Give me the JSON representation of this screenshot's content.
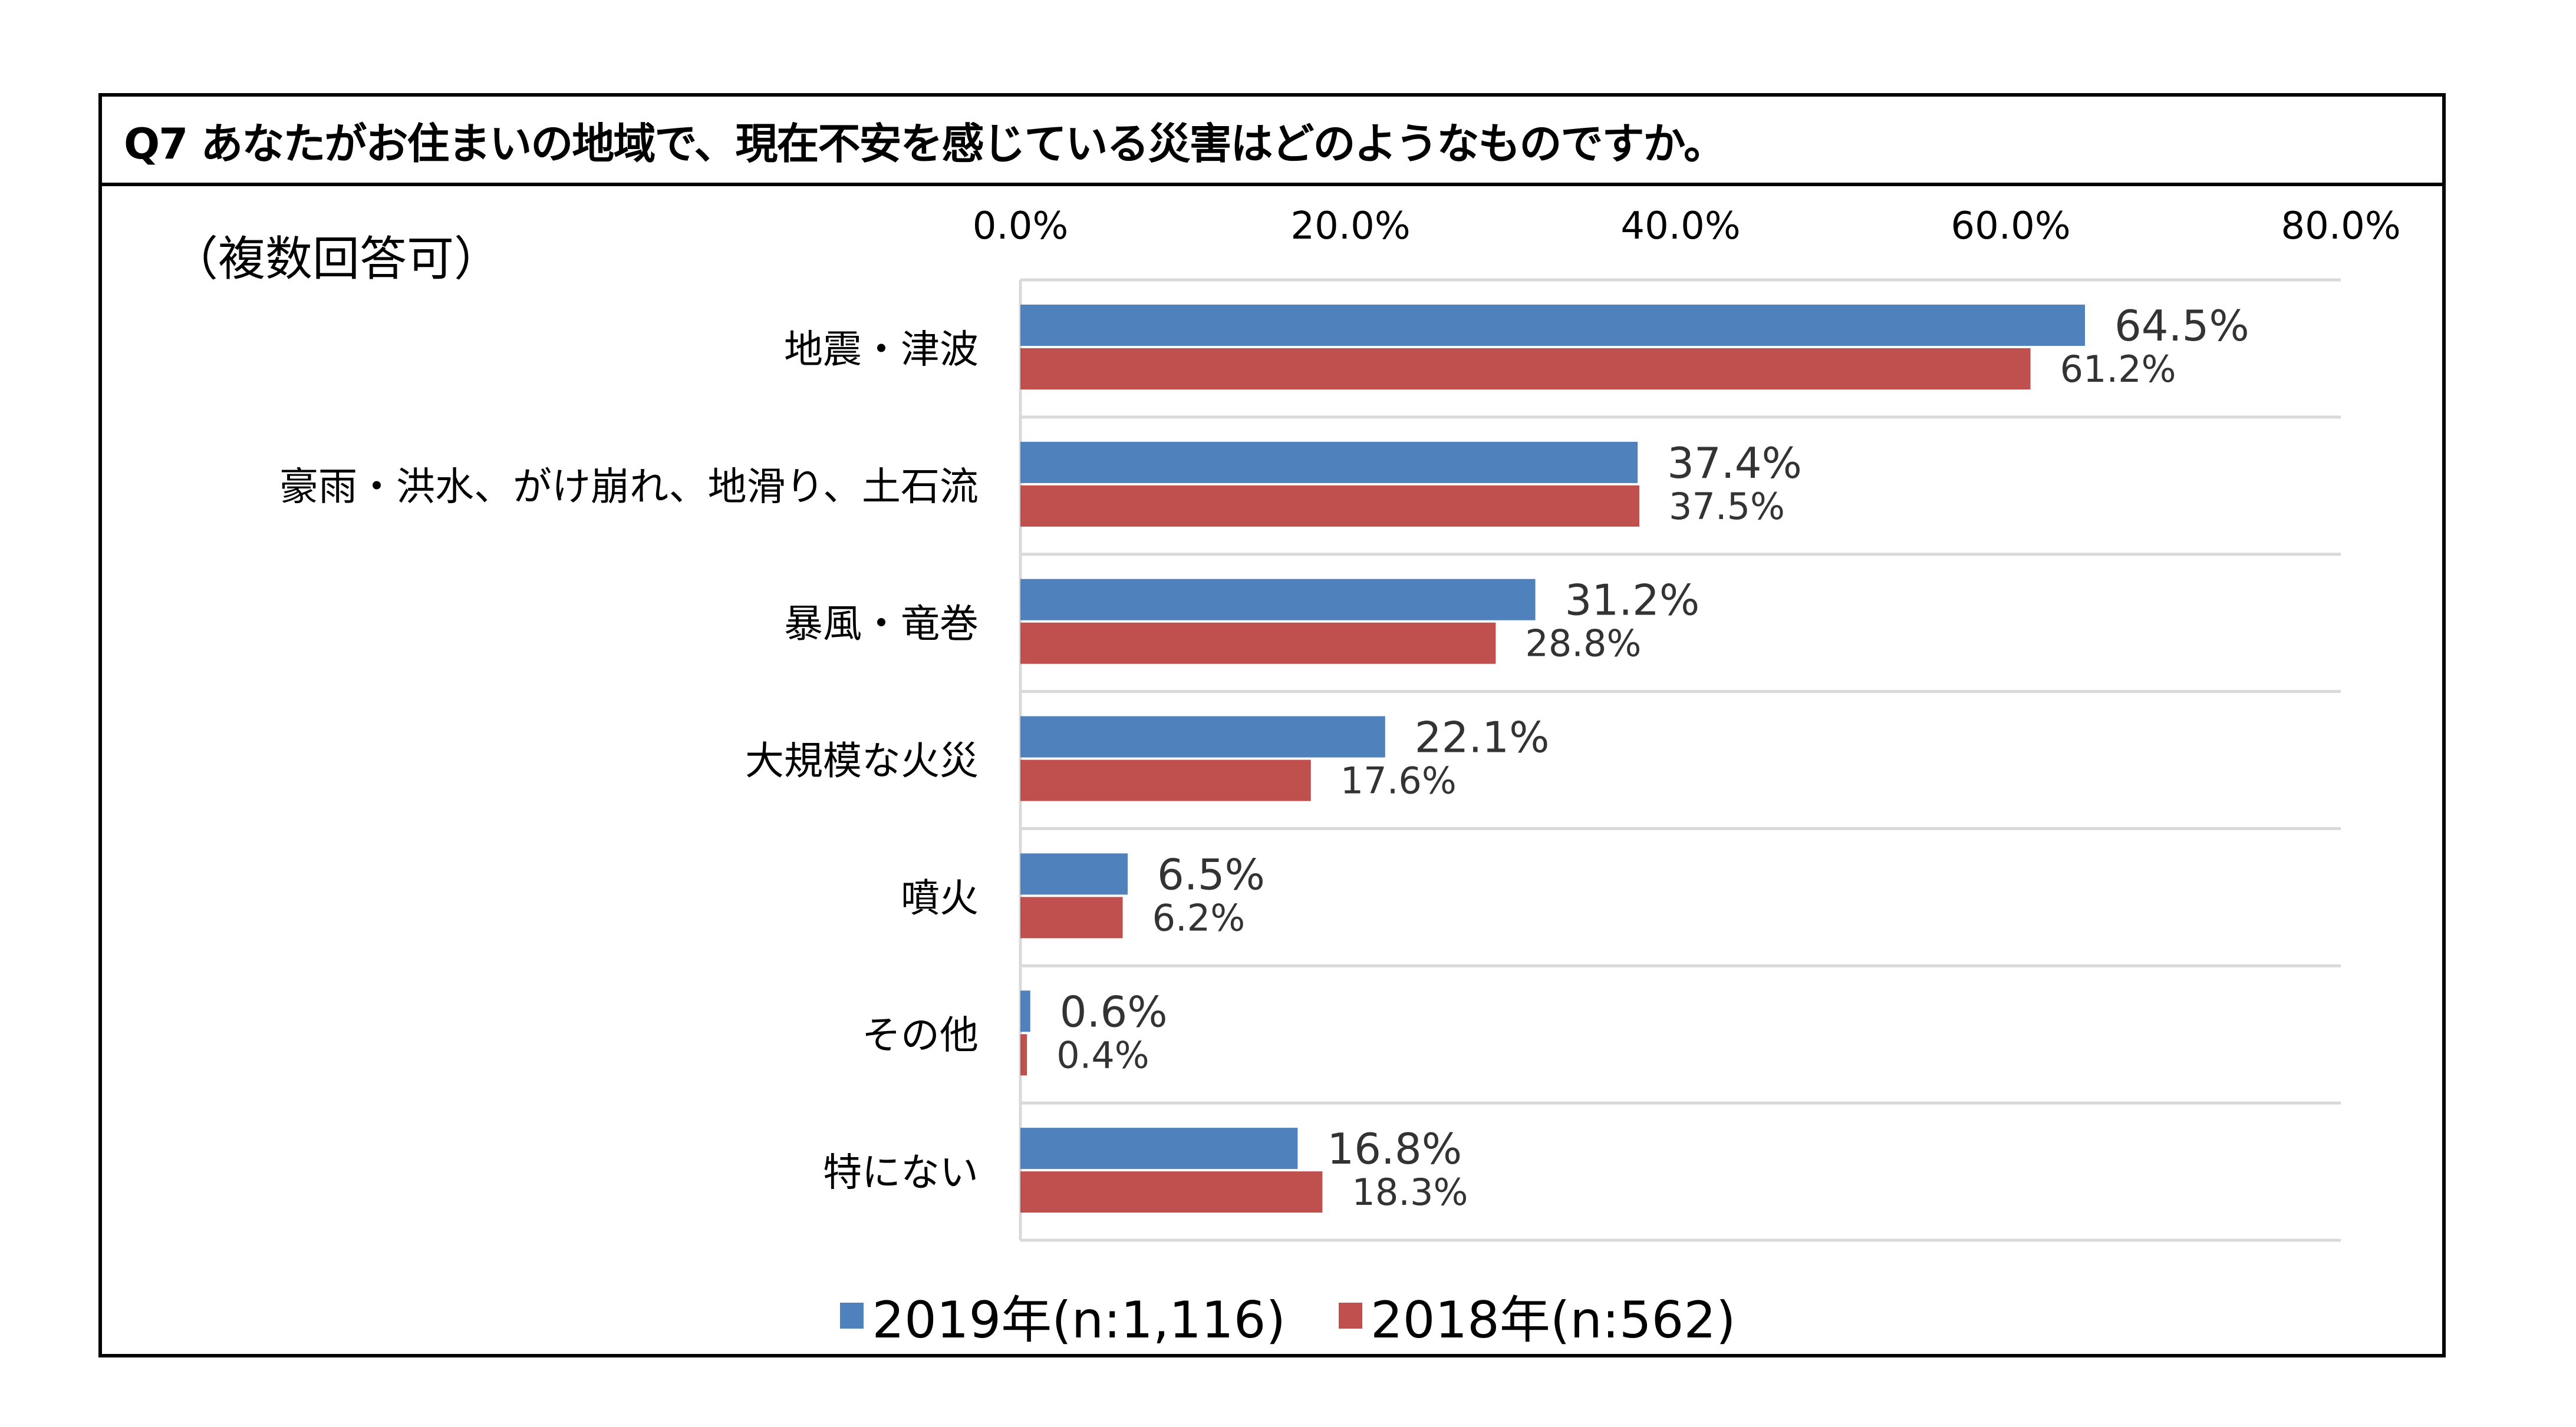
{
  "chart_data": {
    "type": "bar",
    "orientation": "horizontal",
    "title": "Q7 あなたがお住まいの地域で、現在不安を感じている災害はどのようなものですか。",
    "subtitle": "（複数回答可）",
    "categories": [
      "地震・津波",
      "豪雨・洪水、がけ崩れ、地滑り、土石流",
      "暴風・竜巻",
      "大規模な火災",
      "噴火",
      "その他",
      "特にない"
    ],
    "series": [
      {
        "name": "2019年(n:1,116)",
        "color": "#4F81BD",
        "values": [
          64.5,
          37.4,
          31.2,
          22.1,
          6.5,
          0.6,
          16.8
        ]
      },
      {
        "name": "2018年(n:562)",
        "color": "#C0504D",
        "values": [
          61.2,
          37.5,
          28.8,
          17.6,
          6.2,
          0.4,
          18.3
        ]
      }
    ],
    "xlim": [
      0,
      80
    ],
    "xticks": [
      "0.0%",
      "20.0%",
      "40.0%",
      "60.0%",
      "80.0%"
    ],
    "axis_position": "top",
    "grid": "horizontal separators between categories",
    "legend_position": "bottom"
  }
}
